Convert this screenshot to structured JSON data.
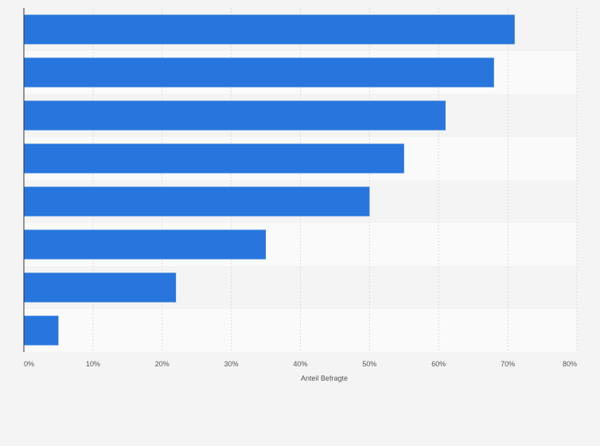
{
  "chart_data": {
    "type": "bar",
    "orientation": "horizontal",
    "categories": [
      "",
      "",
      "",
      "",
      "",
      "",
      "",
      ""
    ],
    "values": [
      71,
      68,
      61,
      55,
      50,
      35,
      22,
      5
    ],
    "xlim": [
      0,
      80
    ],
    "ticks": [
      0,
      10,
      20,
      30,
      40,
      50,
      60,
      70,
      80
    ],
    "tick_labels": [
      "0%",
      "10%",
      "20%",
      "30%",
      "40%",
      "50%",
      "60%",
      "70%",
      "80%"
    ],
    "xlabel": "Anteil Befragte",
    "ylabel": "",
    "title": "",
    "grid": true,
    "legend": "none",
    "bar_color": "#2876dd",
    "band_colors": [
      "#f4f4f4",
      "#fafafa"
    ],
    "grid_color": "#dcdcdc",
    "axis_color": "#333333"
  }
}
